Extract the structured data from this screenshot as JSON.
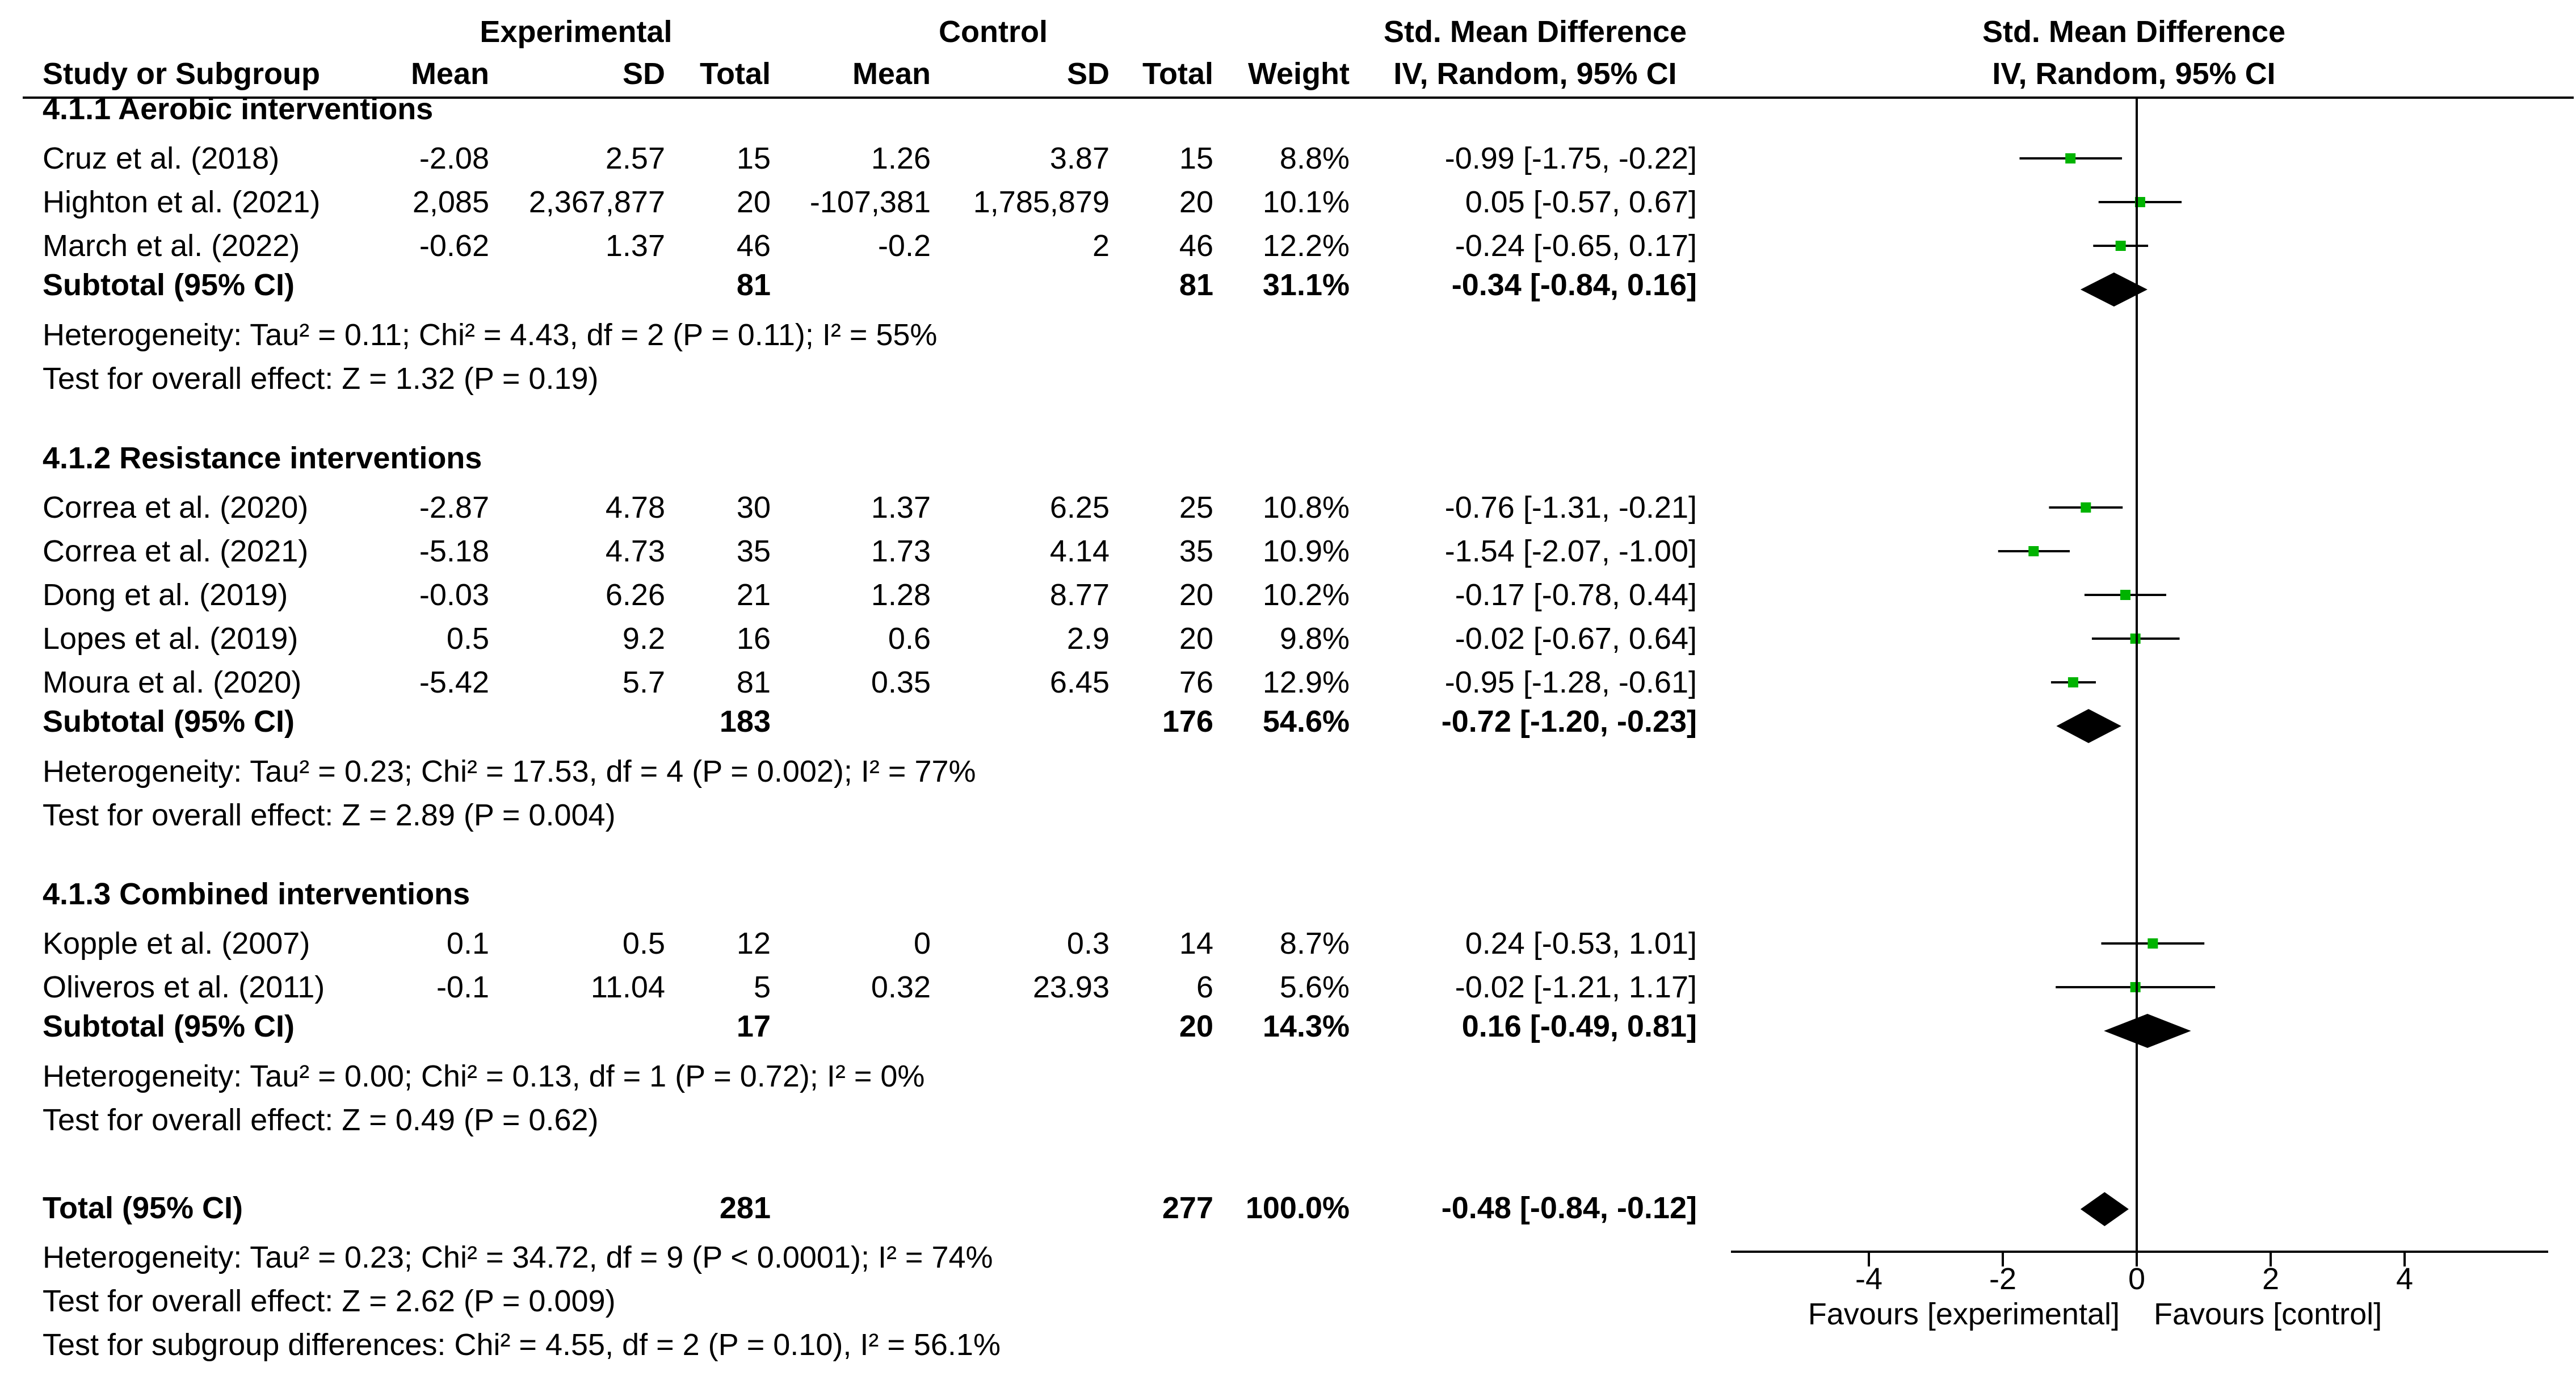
{
  "colors": {
    "point": "#00b300",
    "diamond": "#000000",
    "line": "#000000"
  },
  "header": {
    "experimental": "Experimental",
    "control": "Control",
    "smd_text": "Std. Mean Difference",
    "smd_text_sub": "IV, Random, 95% CI",
    "smd_plot": "Std. Mean Difference",
    "smd_plot_sub": "IV, Random, 95% CI",
    "study": "Study or Subgroup",
    "mean_e": "Mean",
    "sd_e": "SD",
    "total_e": "Total",
    "mean_c": "Mean",
    "sd_c": "SD",
    "total_c": "Total",
    "weight": "Weight"
  },
  "chart_data": {
    "type": "forest",
    "xlim": [
      -5,
      6
    ],
    "ticks": [
      -4,
      -2,
      0,
      2,
      4
    ],
    "tick_labels": [
      "-4",
      "-2",
      "0",
      "2",
      "4"
    ],
    "favours_left": "Favours [experimental]",
    "favours_right": "Favours [control]",
    "subgroups": [
      {
        "title": "4.1.1 Aerobic interventions",
        "studies": [
          {
            "name": "Cruz et al. (2018)",
            "mean_e": "-2.08",
            "sd_e": "2.57",
            "n_e": "15",
            "mean_c": "1.26",
            "sd_c": "3.87",
            "n_c": "15",
            "weight": "8.8%",
            "ci": "-0.99 [-1.75, -0.22]",
            "est": -0.99,
            "lo": -1.75,
            "hi": -0.22
          },
          {
            "name": "Highton et al. (2021)",
            "mean_e": "2,085",
            "sd_e": "2,367,877",
            "n_e": "20",
            "mean_c": "-107,381",
            "sd_c": "1,785,879",
            "n_c": "20",
            "weight": "10.1%",
            "ci": "0.05 [-0.57, 0.67]",
            "est": 0.05,
            "lo": -0.57,
            "hi": 0.67
          },
          {
            "name": "March et al. (2022)",
            "mean_e": "-0.62",
            "sd_e": "1.37",
            "n_e": "46",
            "mean_c": "-0.2",
            "sd_c": "2",
            "n_c": "46",
            "weight": "12.2%",
            "ci": "-0.24 [-0.65, 0.17]",
            "est": -0.24,
            "lo": -0.65,
            "hi": 0.17
          }
        ],
        "subtotal": {
          "label": "Subtotal (95% CI)",
          "n_e": "81",
          "n_c": "81",
          "weight": "31.1%",
          "ci": "-0.34 [-0.84, 0.16]",
          "est": -0.34,
          "lo": -0.84,
          "hi": 0.16
        },
        "heterogeneity": "Heterogeneity: Tau² = 0.11; Chi² = 4.43, df = 2 (P = 0.11); I² = 55%",
        "overall": "Test for overall effect: Z = 1.32 (P = 0.19)"
      },
      {
        "title": "4.1.2 Resistance interventions",
        "studies": [
          {
            "name": "Correa et al. (2020)",
            "mean_e": "-2.87",
            "sd_e": "4.78",
            "n_e": "30",
            "mean_c": "1.37",
            "sd_c": "6.25",
            "n_c": "25",
            "weight": "10.8%",
            "ci": "-0.76 [-1.31, -0.21]",
            "est": -0.76,
            "lo": -1.31,
            "hi": -0.21
          },
          {
            "name": "Correa et al. (2021)",
            "mean_e": "-5.18",
            "sd_e": "4.73",
            "n_e": "35",
            "mean_c": "1.73",
            "sd_c": "4.14",
            "n_c": "35",
            "weight": "10.9%",
            "ci": "-1.54 [-2.07, -1.00]",
            "est": -1.54,
            "lo": -2.07,
            "hi": -1.0
          },
          {
            "name": "Dong et al. (2019)",
            "mean_e": "-0.03",
            "sd_e": "6.26",
            "n_e": "21",
            "mean_c": "1.28",
            "sd_c": "8.77",
            "n_c": "20",
            "weight": "10.2%",
            "ci": "-0.17 [-0.78, 0.44]",
            "est": -0.17,
            "lo": -0.78,
            "hi": 0.44
          },
          {
            "name": "Lopes et al. (2019)",
            "mean_e": "0.5",
            "sd_e": "9.2",
            "n_e": "16",
            "mean_c": "0.6",
            "sd_c": "2.9",
            "n_c": "20",
            "weight": "9.8%",
            "ci": "-0.02 [-0.67, 0.64]",
            "est": -0.02,
            "lo": -0.67,
            "hi": 0.64
          },
          {
            "name": "Moura et al. (2020)",
            "mean_e": "-5.42",
            "sd_e": "5.7",
            "n_e": "81",
            "mean_c": "0.35",
            "sd_c": "6.45",
            "n_c": "76",
            "weight": "12.9%",
            "ci": "-0.95 [-1.28, -0.61]",
            "est": -0.95,
            "lo": -1.28,
            "hi": -0.61
          }
        ],
        "subtotal": {
          "label": "Subtotal (95% CI)",
          "n_e": "183",
          "n_c": "176",
          "weight": "54.6%",
          "ci": "-0.72 [-1.20, -0.23]",
          "est": -0.72,
          "lo": -1.2,
          "hi": -0.23
        },
        "heterogeneity": "Heterogeneity: Tau² = 0.23; Chi² = 17.53, df = 4 (P = 0.002); I² = 77%",
        "overall": "Test for overall effect: Z = 2.89 (P = 0.004)"
      },
      {
        "title": "4.1.3 Combined interventions",
        "studies": [
          {
            "name": "Kopple et al. (2007)",
            "mean_e": "0.1",
            "sd_e": "0.5",
            "n_e": "12",
            "mean_c": "0",
            "sd_c": "0.3",
            "n_c": "14",
            "weight": "8.7%",
            "ci": "0.24 [-0.53, 1.01]",
            "est": 0.24,
            "lo": -0.53,
            "hi": 1.01
          },
          {
            "name": "Oliveros et al. (2011)",
            "mean_e": "-0.1",
            "sd_e": "11.04",
            "n_e": "5",
            "mean_c": "0.32",
            "sd_c": "23.93",
            "n_c": "6",
            "weight": "5.6%",
            "ci": "-0.02 [-1.21, 1.17]",
            "est": -0.02,
            "lo": -1.21,
            "hi": 1.17
          }
        ],
        "subtotal": {
          "label": "Subtotal (95% CI)",
          "n_e": "17",
          "n_c": "20",
          "weight": "14.3%",
          "ci": "0.16 [-0.49, 0.81]",
          "est": 0.16,
          "lo": -0.49,
          "hi": 0.81
        },
        "heterogeneity": "Heterogeneity: Tau² = 0.00; Chi² = 0.13, df = 1 (P = 0.72); I² = 0%",
        "overall": "Test for overall effect: Z = 0.49 (P = 0.62)"
      }
    ],
    "total": {
      "label": "Total (95% CI)",
      "n_e": "281",
      "n_c": "277",
      "weight": "100.0%",
      "ci": "-0.48 [-0.84, -0.12]",
      "est": -0.48,
      "lo": -0.84,
      "hi": -0.12
    },
    "total_heterogeneity": "Heterogeneity: Tau² = 0.23; Chi² = 34.72, df = 9 (P < 0.0001); I² = 74%",
    "total_overall": "Test for overall effect: Z = 2.62 (P = 0.009)",
    "subgroup_differences": "Test for subgroup differences: Chi² = 4.55, df = 2 (P = 0.10), I² = 56.1%"
  }
}
